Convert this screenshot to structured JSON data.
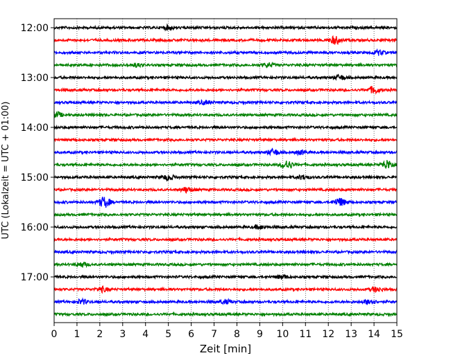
{
  "chart_data": {
    "type": "line",
    "title": "",
    "xlabel": "Zeit  [min]",
    "ylabel": "UTC (Lokalzeit = UTC + 01:00)",
    "xlim": [
      0,
      15
    ],
    "x_ticks": [
      "0",
      "1",
      "2",
      "3",
      "4",
      "5",
      "6",
      "7",
      "8",
      "9",
      "10",
      "11",
      "12",
      "13",
      "14",
      "15"
    ],
    "y_ticks": [
      {
        "label": "12:00",
        "time": "12:00"
      },
      {
        "label": "13:00",
        "time": "13:00"
      },
      {
        "label": "14:00",
        "time": "14:00"
      },
      {
        "label": "15:00",
        "time": "15:00"
      },
      {
        "label": "16:00",
        "time": "16:00"
      },
      {
        "label": "17:00",
        "time": "17:00"
      }
    ],
    "grid": "vertical dotted at each minute",
    "color_cycle": [
      "#000000",
      "#ff0000",
      "#0000ff",
      "#008000"
    ],
    "traces": [
      {
        "start": "12:00",
        "color": "#000000",
        "events": [
          {
            "t": 5.0,
            "amp": 0.5
          }
        ]
      },
      {
        "start": "12:15",
        "color": "#ff0000",
        "events": [
          {
            "t": 12.3,
            "amp": 1.0
          }
        ]
      },
      {
        "start": "12:30",
        "color": "#0000ff",
        "events": [
          {
            "t": 14.2,
            "amp": 0.6
          }
        ]
      },
      {
        "start": "12:45",
        "color": "#008000",
        "events": [
          {
            "t": 3.6,
            "amp": 0.4
          },
          {
            "t": 9.4,
            "amp": 0.5
          }
        ]
      },
      {
        "start": "13:00",
        "color": "#000000",
        "events": [
          {
            "t": 12.5,
            "amp": 0.6
          }
        ]
      },
      {
        "start": "13:15",
        "color": "#ff0000",
        "events": [
          {
            "t": 14.0,
            "amp": 0.9
          }
        ]
      },
      {
        "start": "13:30",
        "color": "#0000ff",
        "events": [
          {
            "t": 6.6,
            "amp": 0.5
          }
        ]
      },
      {
        "start": "13:45",
        "color": "#008000",
        "events": [
          {
            "t": 0.1,
            "amp": 0.7
          }
        ]
      },
      {
        "start": "14:00",
        "color": "#000000",
        "events": []
      },
      {
        "start": "14:15",
        "color": "#ff0000",
        "events": []
      },
      {
        "start": "14:30",
        "color": "#0000ff",
        "events": [
          {
            "t": 9.6,
            "amp": 0.8
          },
          {
            "t": 10.8,
            "amp": 0.5
          }
        ]
      },
      {
        "start": "14:45",
        "color": "#008000",
        "events": [
          {
            "t": 10.2,
            "amp": 1.1
          },
          {
            "t": 14.6,
            "amp": 1.2
          }
        ]
      },
      {
        "start": "15:00",
        "color": "#000000",
        "events": [
          {
            "t": 5.0,
            "amp": 0.7
          },
          {
            "t": 10.9,
            "amp": 0.5
          }
        ]
      },
      {
        "start": "15:15",
        "color": "#ff0000",
        "events": [
          {
            "t": 5.8,
            "amp": 0.7
          }
        ]
      },
      {
        "start": "15:30",
        "color": "#0000ff",
        "events": [
          {
            "t": 2.2,
            "amp": 1.4
          },
          {
            "t": 12.5,
            "amp": 1.1
          }
        ]
      },
      {
        "start": "15:45",
        "color": "#008000",
        "events": []
      },
      {
        "start": "16:00",
        "color": "#000000",
        "events": [
          {
            "t": 9.0,
            "amp": 0.5
          }
        ]
      },
      {
        "start": "16:15",
        "color": "#ff0000",
        "events": []
      },
      {
        "start": "16:30",
        "color": "#0000ff",
        "events": []
      },
      {
        "start": "16:45",
        "color": "#008000",
        "events": [
          {
            "t": 1.2,
            "amp": 0.6
          }
        ]
      },
      {
        "start": "17:00",
        "color": "#000000",
        "events": [
          {
            "t": 10.0,
            "amp": 0.5
          }
        ]
      },
      {
        "start": "17:15",
        "color": "#ff0000",
        "events": [
          {
            "t": 2.1,
            "amp": 0.6
          },
          {
            "t": 14.1,
            "amp": 0.6
          }
        ]
      },
      {
        "start": "17:30",
        "color": "#0000ff",
        "events": [
          {
            "t": 1.2,
            "amp": 0.6
          },
          {
            "t": 7.5,
            "amp": 0.5
          },
          {
            "t": 13.8,
            "amp": 0.7
          }
        ]
      },
      {
        "start": "17:45",
        "color": "#008000",
        "events": []
      }
    ]
  }
}
